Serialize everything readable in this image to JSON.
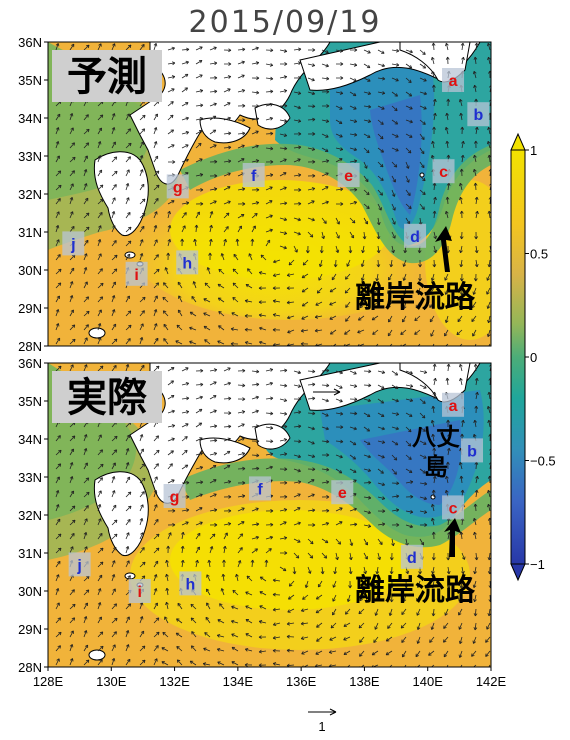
{
  "title": "2015/09/19",
  "panels": [
    {
      "label": "予測",
      "route_label": "離岸流路",
      "island_label": "",
      "markers": [
        {
          "id": "a",
          "lon": 140.8,
          "lat": 35.0,
          "color": "red"
        },
        {
          "id": "b",
          "lon": 141.6,
          "lat": 34.1,
          "color": "blue"
        },
        {
          "id": "c",
          "lon": 140.5,
          "lat": 32.6,
          "color": "red"
        },
        {
          "id": "d",
          "lon": 139.6,
          "lat": 30.9,
          "color": "blue"
        },
        {
          "id": "e",
          "lon": 137.5,
          "lat": 32.5,
          "color": "red"
        },
        {
          "id": "f",
          "lon": 134.5,
          "lat": 32.5,
          "color": "blue"
        },
        {
          "id": "g",
          "lon": 132.1,
          "lat": 32.2,
          "color": "red"
        },
        {
          "id": "h",
          "lon": 132.4,
          "lat": 30.2,
          "color": "blue"
        },
        {
          "id": "i",
          "lon": 130.8,
          "lat": 29.9,
          "color": "red"
        },
        {
          "id": "j",
          "lon": 128.8,
          "lat": 30.7,
          "color": "blue"
        }
      ]
    },
    {
      "label": "実際",
      "route_label": "離岸流路",
      "island_label": "八丈\n島",
      "markers": [
        {
          "id": "a",
          "lon": 140.8,
          "lat": 34.9,
          "color": "red"
        },
        {
          "id": "b",
          "lon": 141.4,
          "lat": 33.7,
          "color": "blue"
        },
        {
          "id": "c",
          "lon": 140.8,
          "lat": 32.2,
          "color": "red"
        },
        {
          "id": "d",
          "lon": 139.5,
          "lat": 30.9,
          "color": "blue"
        },
        {
          "id": "e",
          "lon": 137.3,
          "lat": 32.6,
          "color": "red"
        },
        {
          "id": "f",
          "lon": 134.7,
          "lat": 32.7,
          "color": "blue"
        },
        {
          "id": "g",
          "lon": 132.0,
          "lat": 32.5,
          "color": "red"
        },
        {
          "id": "h",
          "lon": 132.5,
          "lat": 30.2,
          "color": "blue"
        },
        {
          "id": "i",
          "lon": 130.9,
          "lat": 30.0,
          "color": "red"
        },
        {
          "id": "j",
          "lon": 129.0,
          "lat": 30.7,
          "color": "blue"
        }
      ]
    }
  ],
  "axes": {
    "x_ticks": [
      "128E",
      "130E",
      "132E",
      "134E",
      "136E",
      "138E",
      "140E",
      "142E"
    ],
    "y_ticks": [
      "28N",
      "29N",
      "30N",
      "31N",
      "32N",
      "33N",
      "34N",
      "35N",
      "36N"
    ],
    "lon_range": [
      128,
      142
    ],
    "lat_range": [
      28,
      36
    ]
  },
  "colorbar": {
    "ticks": [
      "1",
      "0.5",
      "0",
      "−0.5",
      "−1"
    ],
    "values": [
      1,
      0.5,
      0,
      -0.5,
      -1
    ],
    "colors": [
      "#f2e200",
      "#f6cf1a",
      "#f1b23a",
      "#d9b14a",
      "#a6b656",
      "#7ab55b",
      "#48ad7b",
      "#1ea69a",
      "#2a98b0",
      "#3a86c4",
      "#3c6fc6",
      "#3257bd",
      "#283fae"
    ]
  },
  "reference_vector": {
    "label": "1"
  },
  "colors": {
    "predicted_label_bg": "#cfcfcf",
    "marker_bg": "#b8c4d6",
    "red_marker": "#e01010",
    "blue_marker": "#1f2fd0"
  }
}
